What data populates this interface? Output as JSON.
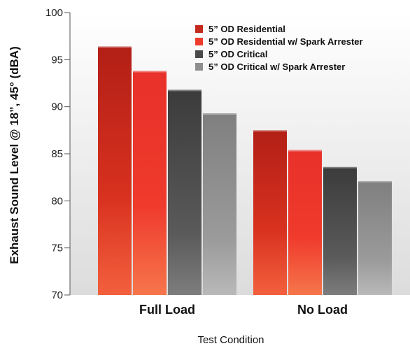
{
  "chart_data": {
    "type": "bar",
    "categories": [
      "Full Load",
      "No Load"
    ],
    "series": [
      {
        "name": "5” OD Residential",
        "values": [
          96.4,
          87.5
        ],
        "color": "#c42a1c"
      },
      {
        "name": "5” OD Residential w/ Spark Arrester",
        "values": [
          93.8,
          85.4
        ],
        "color": "#ee3a2a"
      },
      {
        "name": "5” OD Critical",
        "values": [
          91.8,
          83.6
        ],
        "color": "#4a4a4a"
      },
      {
        "name": "5” OD Critical w/ Spark Arrester",
        "values": [
          89.3,
          82.1
        ],
        "color": "#8f8f8f"
      }
    ],
    "xlabel": "Test Condition",
    "ylabel": "Exhaust Sound Level @ 18”, 45° (dBA)",
    "ylim": [
      70,
      100
    ],
    "yticks": [
      "70",
      "75",
      "80",
      "85",
      "90",
      "95",
      "100"
    ],
    "grid": false,
    "legend_position": "top-right"
  }
}
